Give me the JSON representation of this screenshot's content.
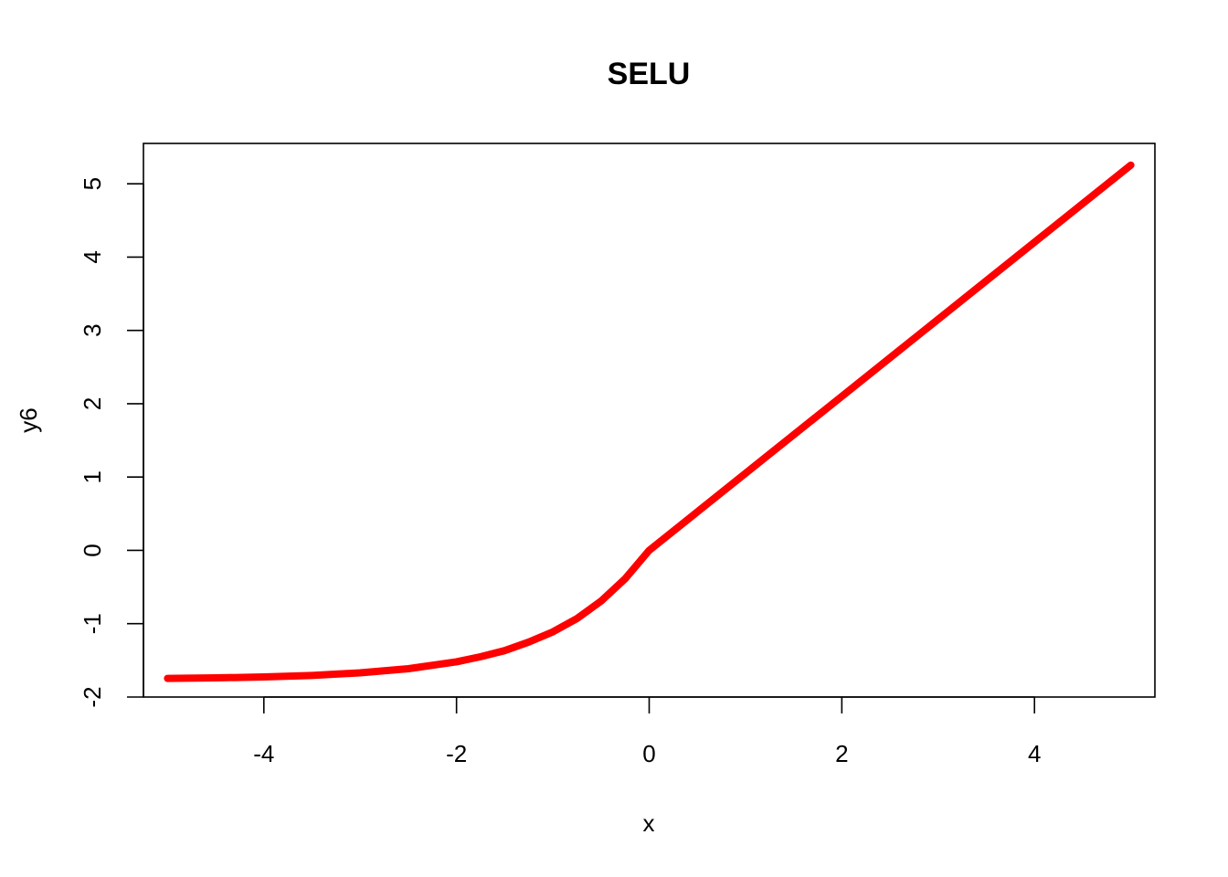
{
  "chart_data": {
    "type": "line",
    "title": "SELU",
    "xlabel": "x",
    "ylabel": "y6",
    "xlim": [
      -5.25,
      5.25
    ],
    "ylim": [
      -2.0,
      5.55
    ],
    "x_ticks": [
      -4,
      -2,
      0,
      2,
      4
    ],
    "x_tick_labels": [
      "-4",
      "-2",
      "0",
      "2",
      "4"
    ],
    "y_ticks": [
      -2,
      -1,
      0,
      1,
      2,
      3,
      4,
      5
    ],
    "y_tick_labels": [
      "-2",
      "-1",
      "0",
      "1",
      "2",
      "3",
      "4",
      "5"
    ],
    "grid": false,
    "legend": "none",
    "series": [
      {
        "color": "#ff0000",
        "x": [
          -5.0,
          -4.5,
          -4.0,
          -3.5,
          -3.0,
          -2.5,
          -2.0,
          -1.75,
          -1.5,
          -1.25,
          -1.0,
          -0.75,
          -0.5,
          -0.25,
          0.0,
          1.0,
          2.0,
          3.0,
          4.0,
          5.0
        ],
        "y": [
          -1.746,
          -1.739,
          -1.726,
          -1.705,
          -1.67,
          -1.614,
          -1.52,
          -1.45,
          -1.367,
          -1.25,
          -1.111,
          -0.93,
          -0.692,
          -0.388,
          0.0,
          1.051,
          2.101,
          3.152,
          4.203,
          5.254
        ]
      }
    ]
  }
}
